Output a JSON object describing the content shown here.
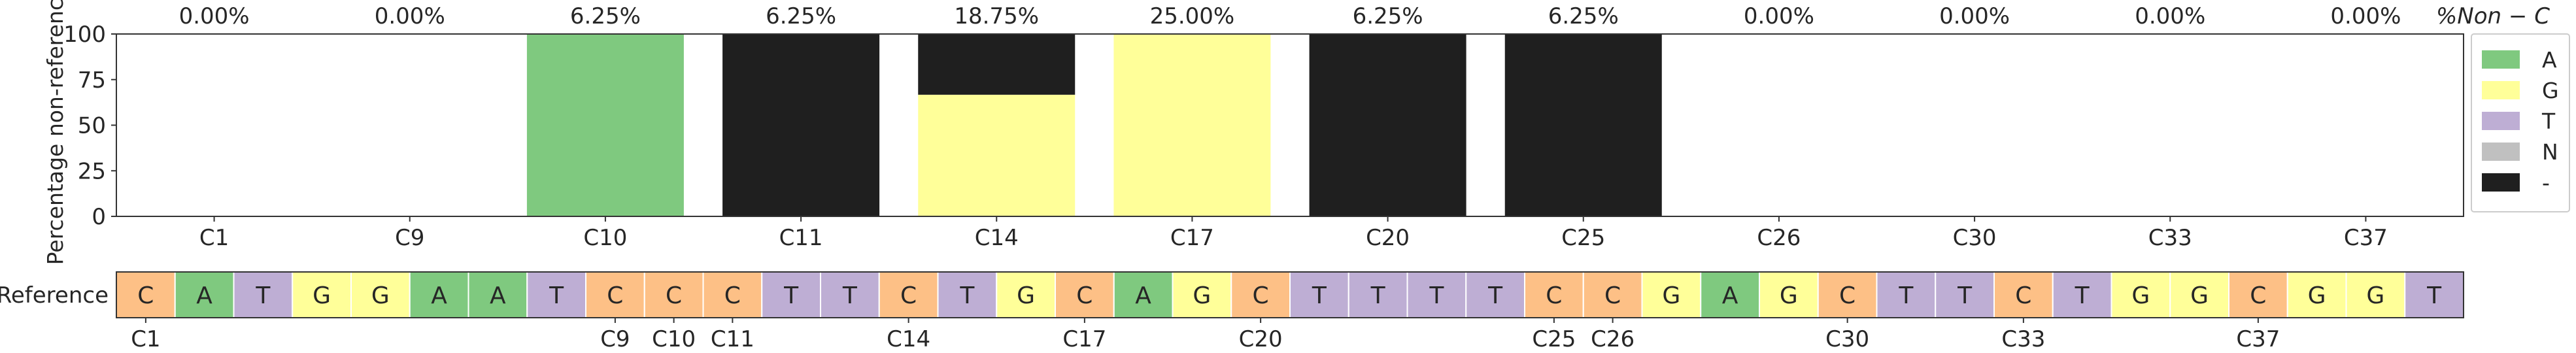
{
  "colors": {
    "A": "#7fc97f",
    "G": "#ffff99",
    "T": "#beaed4",
    "C": "#fdc086",
    "N": "#c0c0c0",
    "-": "#1f1f1f",
    "axis": "#333333"
  },
  "chart_data": [
    {
      "type": "bar",
      "stacked": true,
      "ylabel": "Percentage non-reference",
      "ylim": [
        0,
        100
      ],
      "yticks": [
        0,
        25,
        50,
        75,
        100
      ],
      "grid": false,
      "categories": [
        "C1",
        "C9",
        "C10",
        "C11",
        "C14",
        "C17",
        "C20",
        "C25",
        "C26",
        "C30",
        "C33",
        "C37"
      ],
      "top_labels": [
        "0.00%",
        "0.00%",
        "6.25%",
        "6.25%",
        "18.75%",
        "25.00%",
        "6.25%",
        "6.25%",
        "0.00%",
        "0.00%",
        "0.00%",
        "0.00%"
      ],
      "top_title": "%Non − C",
      "series": [
        {
          "name": "A",
          "values": [
            0,
            0,
            100,
            0,
            0,
            0,
            0,
            0,
            0,
            0,
            0,
            0
          ]
        },
        {
          "name": "G",
          "values": [
            0,
            0,
            0,
            0,
            66.7,
            100,
            0,
            0,
            0,
            0,
            0,
            0
          ]
        },
        {
          "name": "T",
          "values": [
            0,
            0,
            0,
            0,
            0,
            0,
            0,
            0,
            0,
            0,
            0,
            0
          ]
        },
        {
          "name": "N",
          "values": [
            0,
            0,
            0,
            0,
            0,
            0,
            0,
            0,
            0,
            0,
            0,
            0
          ]
        },
        {
          "name": "-",
          "values": [
            0,
            0,
            0,
            100,
            33.3,
            0,
            100,
            100,
            0,
            0,
            0,
            0
          ]
        }
      ],
      "legend": {
        "placement": "right",
        "entries": [
          "A",
          "G",
          "T",
          "N",
          "-"
        ]
      }
    },
    {
      "type": "table",
      "row_label": "Reference",
      "sequence": [
        "C",
        "A",
        "T",
        "G",
        "G",
        "A",
        "A",
        "T",
        "C",
        "C",
        "C",
        "T",
        "T",
        "C",
        "T",
        "G",
        "C",
        "A",
        "G",
        "C",
        "T",
        "T",
        "T",
        "T",
        "C",
        "C",
        "G",
        "A",
        "G",
        "C",
        "T",
        "T",
        "C",
        "T",
        "G",
        "G",
        "C",
        "G",
        "G",
        "T"
      ],
      "position_labels": [
        {
          "index": 0,
          "label": "C1"
        },
        {
          "index": 8,
          "label": "C9"
        },
        {
          "index": 9,
          "label": "C10"
        },
        {
          "index": 10,
          "label": "C11"
        },
        {
          "index": 13,
          "label": "C14"
        },
        {
          "index": 16,
          "label": "C17"
        },
        {
          "index": 19,
          "label": "C20"
        },
        {
          "index": 24,
          "label": "C25"
        },
        {
          "index": 25,
          "label": "C26"
        },
        {
          "index": 29,
          "label": "C30"
        },
        {
          "index": 32,
          "label": "C33"
        },
        {
          "index": 36,
          "label": "C37"
        }
      ]
    }
  ]
}
